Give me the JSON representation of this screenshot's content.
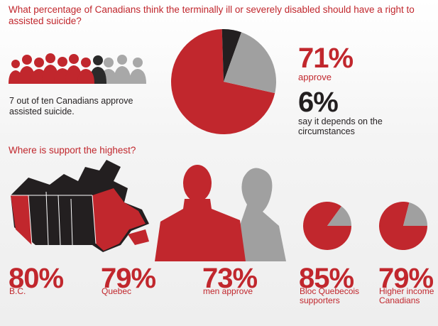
{
  "title": "What percentage of Canadians think the terminally ill or severely disabled should have a right to assisted suicide?",
  "intro_text": "7 out of ten Canadians approve assisted suicide.",
  "subtitle": "Where is support the highest?",
  "colors": {
    "red": "#c1272d",
    "grey": "#a0a0a0",
    "dark": "#231f20"
  },
  "headline": {
    "approve_value": "71%",
    "approve_label": "approve",
    "depends_value": "6%",
    "depends_label": "say it depends on the circumstances"
  },
  "stats": [
    {
      "value": "80%",
      "label": "B.C."
    },
    {
      "value": "79%",
      "label": "Quebec"
    },
    {
      "value": "73%",
      "label": "men approve"
    },
    {
      "value": "85%",
      "label": "Bloc Quebecois supporters"
    },
    {
      "value": "79%",
      "label": "Higher income Canadians"
    }
  ],
  "chart_data": [
    {
      "type": "pie",
      "title": "What percentage of Canadians think the terminally ill or severely disabled should have a right to assisted suicide?",
      "slices": [
        {
          "label": "approve",
          "value": 71
        },
        {
          "label": "say it depends on the circumstances",
          "value": 6
        },
        {
          "label": "",
          "value": 23
        }
      ]
    },
    {
      "type": "pie",
      "slices": [
        {
          "label": "Bloc Quebecois supporters",
          "value": 85
        },
        {
          "label": "",
          "value": 15
        }
      ]
    },
    {
      "type": "pie",
      "slices": [
        {
          "label": "Higher income Canadians",
          "value": 79
        },
        {
          "label": "",
          "value": 21
        }
      ]
    }
  ]
}
